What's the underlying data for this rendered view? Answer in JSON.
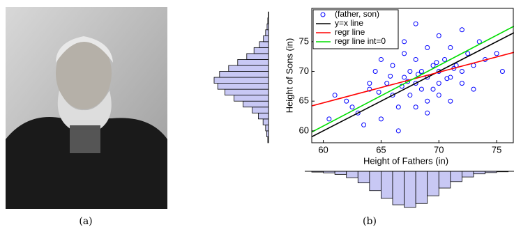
{
  "captions": [
    "(a)",
    "(b)"
  ],
  "chart_data": [
    {
      "type": "scatter",
      "xlabel": "Height of Fathers (in)",
      "ylabel": "Height of Sons (in)",
      "xlim": [
        59,
        76.5
      ],
      "ylim": [
        58,
        80.6
      ],
      "xticks": [
        60,
        65,
        70,
        75
      ],
      "yticks": [
        60,
        65,
        70,
        75
      ],
      "x": [
        62,
        63,
        64,
        64.5,
        65,
        65.5,
        66,
        66,
        66.5,
        67,
        67,
        67.5,
        67.5,
        68,
        68,
        68,
        68.5,
        68.5,
        69,
        69,
        69,
        69.5,
        69.5,
        70,
        70,
        70,
        70.5,
        71,
        71,
        71.5,
        72,
        72,
        72.5,
        73,
        73.5,
        74,
        75,
        60.5,
        61,
        63.5,
        65,
        66.5,
        67,
        68,
        69,
        70,
        71,
        72,
        64,
        62.5,
        73,
        75.5,
        68.2,
        66.8,
        69.8,
        71.3,
        67.3,
        65.8,
        70.7,
        64.8
      ],
      "series": [
        {
          "name": "(father, son)",
          "color": "#0000ff",
          "values": [
            65,
            63,
            67,
            70,
            62,
            68,
            66,
            71,
            64,
            69,
            73,
            66,
            70,
            68,
            72,
            64,
            70,
            67,
            69,
            74,
            65,
            71,
            67,
            70,
            76,
            66,
            72,
            69,
            74,
            71,
            70,
            68,
            73,
            71,
            75,
            72,
            73,
            62,
            66,
            61,
            72,
            60,
            75,
            78,
            63,
            68,
            65,
            77,
            68,
            64,
            67,
            70,
            69.5,
            67.5,
            71.5,
            70.5,
            68.3,
            69.2,
            68.8,
            66.5
          ]
        }
      ],
      "lines": [
        {
          "name": "y=x line",
          "color": "#000000",
          "x": [
            59,
            76.5
          ],
          "values": [
            59,
            76.5
          ]
        },
        {
          "name": "regr line",
          "color": "#ff0000",
          "x": [
            59,
            76.5
          ],
          "values": [
            64.2,
            73.2
          ]
        },
        {
          "name": "regr line int=0",
          "color": "#00dd00",
          "x": [
            59,
            76.5
          ],
          "values": [
            59.8,
            77.6
          ]
        }
      ]
    },
    {
      "type": "histogram",
      "orientation": "horizontal",
      "color": "#c8c8f4",
      "bins": [
        58,
        59,
        60,
        61,
        62,
        63,
        64,
        65,
        66,
        67,
        68,
        69,
        70,
        71,
        72,
        73,
        74,
        75,
        76,
        77,
        78,
        79,
        80
      ],
      "values": [
        2,
        5,
        8,
        15,
        28,
        45,
        70,
        95,
        120,
        140,
        150,
        135,
        110,
        85,
        60,
        40,
        25,
        14,
        8,
        4,
        2,
        1
      ]
    },
    {
      "type": "histogram",
      "orientation": "vertical",
      "color": "#c8c8f4",
      "bins": [
        59,
        60,
        61,
        62,
        63,
        64,
        65,
        66,
        67,
        68,
        69,
        70,
        71,
        72,
        73,
        74,
        75,
        76
      ],
      "values": [
        3,
        6,
        12,
        25,
        45,
        75,
        105,
        130,
        140,
        125,
        95,
        65,
        40,
        22,
        10,
        5,
        2
      ]
    }
  ]
}
